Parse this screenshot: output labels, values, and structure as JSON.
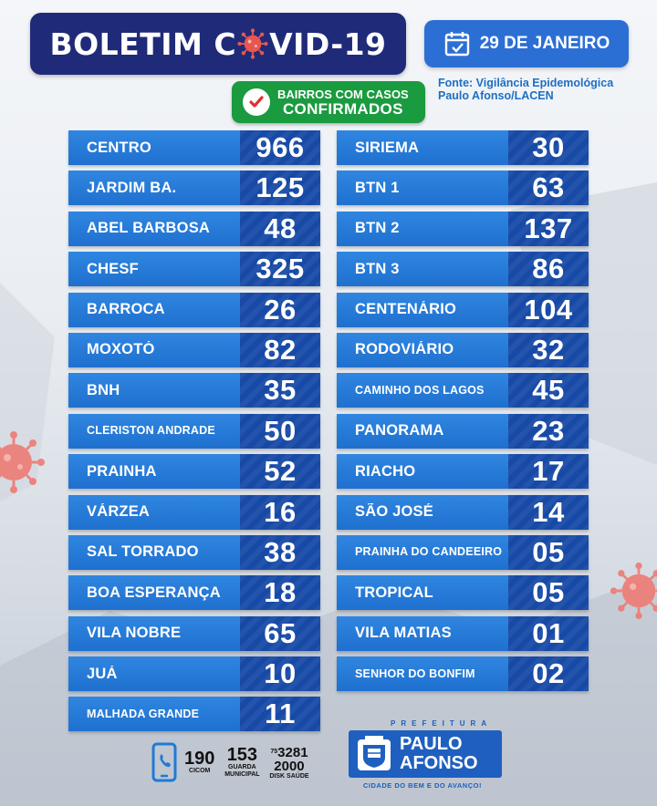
{
  "header": {
    "title_part1": "BOLETIM C",
    "title_part2": "VID-19",
    "date": "29 DE JANEIRO",
    "source_line1": "Fonte: Vigilância Epidemológica",
    "source_line2": "Paulo Afonso/LACEN"
  },
  "badge": {
    "line1": "BAIRROS COM CASOS",
    "line2": "CONFIRMADOS"
  },
  "left_column": [
    {
      "name": "CENTRO",
      "cases": "966"
    },
    {
      "name": "JARDIM BA.",
      "cases": "125"
    },
    {
      "name": "ABEL BARBOSA",
      "cases": "48"
    },
    {
      "name": "CHESF",
      "cases": "325"
    },
    {
      "name": "BARROCA",
      "cases": "26"
    },
    {
      "name": "MOXOTÓ",
      "cases": "82"
    },
    {
      "name": "BNH",
      "cases": "35"
    },
    {
      "name": "CLÉRISTON ANDRADE",
      "cases": "50",
      "small": true
    },
    {
      "name": "PRAINHA",
      "cases": "52"
    },
    {
      "name": "VÁRZEA",
      "cases": "16"
    },
    {
      "name": "SAL TORRADO",
      "cases": "38"
    },
    {
      "name": "BOA ESPERANÇA",
      "cases": "18"
    },
    {
      "name": "VILA NOBRE",
      "cases": "65"
    },
    {
      "name": "JUÁ",
      "cases": "10"
    },
    {
      "name": "MALHADA GRANDE",
      "cases": "11",
      "small": true
    }
  ],
  "right_column": [
    {
      "name": "SIRIEMA",
      "cases": "30"
    },
    {
      "name": "BTN 1",
      "cases": "63"
    },
    {
      "name": "BTN 2",
      "cases": "137"
    },
    {
      "name": "BTN 3",
      "cases": "86"
    },
    {
      "name": "CENTENÁRIO",
      "cases": "104"
    },
    {
      "name": "RODOVIÁRIO",
      "cases": "32"
    },
    {
      "name": "CAMINHO DOS LAGOS",
      "cases": "45",
      "small": true
    },
    {
      "name": "PANORAMA",
      "cases": "23"
    },
    {
      "name": "RIACHO",
      "cases": "17"
    },
    {
      "name": "SÃO JOSÉ",
      "cases": "14"
    },
    {
      "name": "PRAINHA DO CANDEEIRO",
      "cases": "05",
      "small": true
    },
    {
      "name": "TROPICAL",
      "cases": "05"
    },
    {
      "name": "VILA MATIAS",
      "cases": "01"
    },
    {
      "name": "SENHOR DO BONFIM",
      "cases": "02",
      "smallOneLine": true
    }
  ],
  "footer": {
    "cicom_number": "190",
    "cicom_label": "CICOM",
    "guarda_number": "153",
    "guarda_label": "GUARDA MUNICIPAL",
    "disk_prefix": "75",
    "disk_number_1": "3281",
    "disk_number_2": "2000",
    "disk_label": "DISK SAÚDE"
  },
  "logo": {
    "prefeitura": "PREFEITURA",
    "name_line1": "PAULO",
    "name_line2": "AFONSO",
    "slogan": "CIDADE DO BEM E DO AVANÇO!"
  },
  "colors": {
    "title_bg": "#1f2b78",
    "date_bg": "#2c6fd4",
    "badge_bg": "#1a9b3f",
    "row_bg": "#2478d8",
    "num_bg": "#174aa6",
    "virus": "#e8574f"
  },
  "icons": {
    "calendar": "calendar-icon",
    "check": "check-icon",
    "phone": "phone-icon",
    "virus": "coronavirus-icon"
  }
}
